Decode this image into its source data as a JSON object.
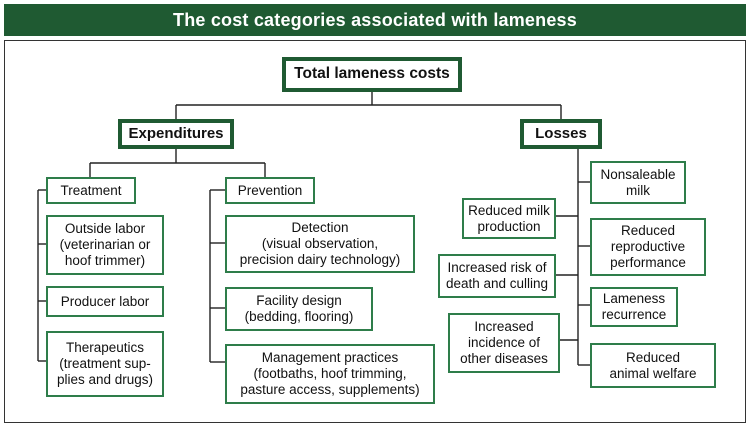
{
  "title": "The cost categories associated with lameness",
  "root": "Total lameness costs",
  "expenditures": {
    "label": "Expenditures",
    "treatment": {
      "label": "Treatment",
      "items": [
        "Outside labor\n(veterinarian or\nhoof trimmer)",
        "Producer labor",
        "Therapeutics\n(treatment sup-\nplies and drugs)"
      ]
    },
    "prevention": {
      "label": "Prevention",
      "items": [
        "Detection\n(visual observation,\nprecision dairy technology)",
        "Facility design\n(bedding, flooring)",
        "Management practices\n(footbaths, hoof trimming,\npasture access, supplements)"
      ]
    }
  },
  "losses": {
    "label": "Losses",
    "left_items": [
      "Reduced milk\nproduction",
      "Increased risk of\ndeath and culling",
      "Increased\nincidence of\nother diseases"
    ],
    "right_items": [
      "Nonsaleable\nmilk",
      "Reduced\nreproductive\nperformance",
      "Lameness\nrecurrence",
      "Reduced\nanimal welfare"
    ]
  },
  "colors": {
    "banner": "#1f5a32",
    "box_border": "#2e7d4a",
    "line": "#222222"
  }
}
